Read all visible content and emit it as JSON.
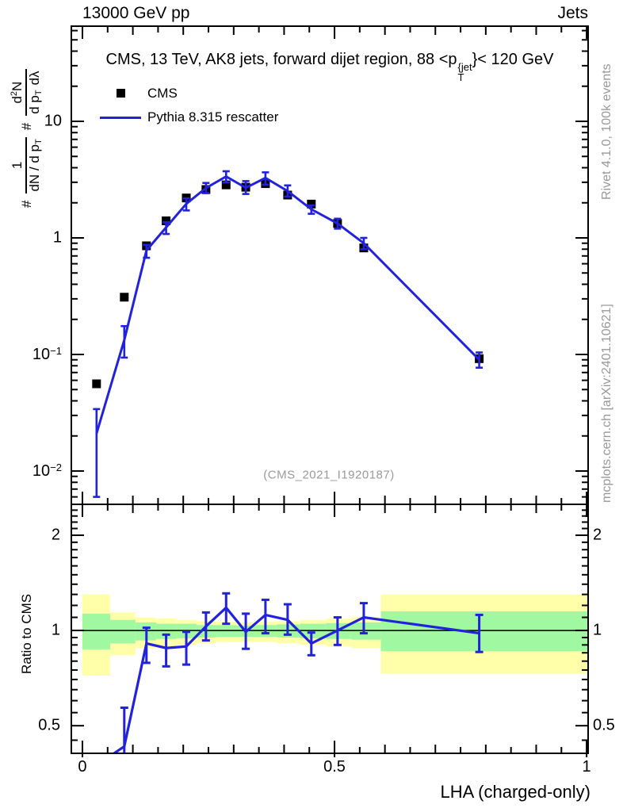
{
  "header": {
    "left": "13000 GeV pp",
    "right": "Jets"
  },
  "title": {
    "pre": "CMS, 13 TeV, AK8 jets, forward dijet region, 88 <p",
    "sup": "{jet",
    "sub": "T",
    "post": "}< 120 GeV"
  },
  "legend": {
    "items": [
      {
        "label": "CMS",
        "marker": "black-square"
      },
      {
        "label": "Pythia 8.315 rescatter",
        "marker": "blue-line"
      }
    ]
  },
  "watermark": "(CMS_2021_I1920187)",
  "side_notes": {
    "top": "Rivet 4.1.0,  100k events",
    "bottom": "mcplots.cern.ch [arXiv:2401.10621]"
  },
  "formula": {
    "hash1": "#",
    "f1_num": "1",
    "f1_den": "dN / d p",
    "f1_den_sub": "T",
    "hash2": "#",
    "f2_num_base": "d",
    "f2_num_sup": "2",
    "f2_num_tail": "N",
    "f2_den_a": "d p",
    "f2_den_sub": "T",
    "f2_den_b": "dλ"
  },
  "axis_titles": {
    "x": "LHA (charged-only)",
    "ratio_y": "Ratio to CMS"
  },
  "colors": {
    "blue": "#2222dd",
    "black": "#000000",
    "band_yellow": "#ffffaa",
    "band_green": "#a0f8a0",
    "note_gray": "#999999",
    "watermark_gray": "#9a9a9a"
  },
  "chart_data": {
    "type": "line",
    "title": "CMS, 13 TeV, AK8 jets, forward dijet region, 88 < pT^{jet} < 120 GeV",
    "xlabel": "LHA (charged-only)",
    "ylabel": "# 1/(dN/dpT) # d2N/(dpT dlambda)",
    "ratio_ylabel": "Ratio to CMS",
    "y_scale": "log",
    "ratio_scale": "log",
    "x_range": [
      -0.022,
      1.003
    ],
    "main_y_range": [
      0.00518,
      65.5
    ],
    "ratio_y_range": [
      0.409,
      2.504
    ],
    "x": [
      0.028,
      0.083,
      0.127,
      0.166,
      0.206,
      0.245,
      0.285,
      0.324,
      0.363,
      0.407,
      0.454,
      0.506,
      0.558,
      0.787
    ],
    "series": [
      {
        "name": "CMS",
        "style": "scatter-square",
        "color": "#000000",
        "values": [
          0.056,
          0.31,
          0.855,
          1.4,
          2.2,
          2.6,
          2.85,
          2.72,
          2.92,
          2.33,
          1.95,
          1.33,
          0.82,
          0.092
        ]
      },
      {
        "name": "Pythia 8.315 rescatter",
        "style": "line-errorbars",
        "color": "#2222dd",
        "values": [
          0.021,
          0.133,
          0.78,
          1.23,
          1.96,
          2.68,
          3.36,
          2.69,
          3.27,
          2.52,
          1.76,
          1.33,
          0.9,
          0.09
        ],
        "err_lo": [
          0.006,
          0.094,
          0.675,
          1.08,
          1.72,
          2.42,
          2.99,
          2.38,
          2.86,
          2.26,
          1.61,
          1.2,
          0.8,
          0.077
        ],
        "err_hi": [
          0.034,
          0.175,
          0.87,
          1.36,
          2.18,
          2.96,
          3.73,
          3.07,
          3.65,
          2.82,
          1.9,
          1.46,
          1.0,
          0.104
        ]
      }
    ],
    "ratio": {
      "name": "Pythia/CMS",
      "reference": 1,
      "values": [
        0.375,
        0.43,
        0.91,
        0.88,
        0.89,
        1.03,
        1.18,
        0.99,
        1.12,
        1.08,
        0.91,
        1.0,
        1.1,
        0.98
      ],
      "err_lo": [
        0.3,
        0.36,
        0.79,
        0.77,
        0.78,
        0.93,
        1.05,
        0.875,
        0.98,
        0.97,
        0.835,
        0.9,
        0.98,
        0.855
      ],
      "err_hi": [
        0.45,
        0.57,
        1.02,
        0.97,
        0.99,
        1.14,
        1.31,
        1.13,
        1.25,
        1.21,
        0.985,
        1.1,
        1.22,
        1.12
      ]
    },
    "bands": [
      {
        "x0": 0.0,
        "x1": 0.055,
        "yellow": [
          0.72,
          1.3
        ],
        "green": [
          0.87,
          1.13
        ]
      },
      {
        "x0": 0.055,
        "x1": 0.105,
        "yellow": [
          0.835,
          1.14
        ],
        "green": [
          0.91,
          1.08
        ]
      },
      {
        "x0": 0.105,
        "x1": 0.146,
        "yellow": [
          0.88,
          1.1
        ],
        "green": [
          0.93,
          1.06
        ]
      },
      {
        "x0": 0.146,
        "x1": 0.186,
        "yellow": [
          0.89,
          1.09
        ],
        "green": [
          0.94,
          1.05
        ]
      },
      {
        "x0": 0.186,
        "x1": 0.226,
        "yellow": [
          0.9,
          1.08
        ],
        "green": [
          0.945,
          1.05
        ]
      },
      {
        "x0": 0.226,
        "x1": 0.265,
        "yellow": [
          0.91,
          1.07
        ],
        "green": [
          0.95,
          1.04
        ]
      },
      {
        "x0": 0.265,
        "x1": 0.305,
        "yellow": [
          0.92,
          1.065
        ],
        "green": [
          0.955,
          1.04
        ]
      },
      {
        "x0": 0.305,
        "x1": 0.344,
        "yellow": [
          0.92,
          1.06
        ],
        "green": [
          0.955,
          1.035
        ]
      },
      {
        "x0": 0.344,
        "x1": 0.385,
        "yellow": [
          0.92,
          1.065
        ],
        "green": [
          0.955,
          1.04
        ]
      },
      {
        "x0": 0.385,
        "x1": 0.432,
        "yellow": [
          0.91,
          1.07
        ],
        "green": [
          0.95,
          1.045
        ]
      },
      {
        "x0": 0.432,
        "x1": 0.483,
        "yellow": [
          0.9,
          1.08
        ],
        "green": [
          0.945,
          1.05
        ]
      },
      {
        "x0": 0.483,
        "x1": 0.534,
        "yellow": [
          0.89,
          1.09
        ],
        "green": [
          0.94,
          1.055
        ]
      },
      {
        "x0": 0.534,
        "x1": 0.592,
        "yellow": [
          0.88,
          1.1
        ],
        "green": [
          0.935,
          1.06
        ]
      },
      {
        "x0": 0.592,
        "x1": 1.003,
        "yellow": [
          0.73,
          1.3
        ],
        "green": [
          0.86,
          1.15
        ]
      }
    ],
    "axes": {
      "x_major": [
        0,
        0.5,
        1
      ],
      "x_minor_step": 0.05,
      "main_y_major": [
        10,
        1,
        0.1,
        0.01
      ],
      "ratio_y_major": [
        2,
        1,
        0.5
      ],
      "ratio_y_minor": [
        0.45,
        0.55,
        0.6,
        0.65,
        0.7,
        0.75,
        0.8,
        0.85,
        0.9,
        0.95,
        1.1,
        1.2,
        1.3,
        1.4,
        1.5,
        1.6,
        1.7,
        1.8,
        1.9,
        2.1,
        2.2,
        2.3,
        2.4,
        2.5
      ],
      "main_y_labels": [
        {
          "v": 10,
          "base": "10",
          "exp": ""
        },
        {
          "v": 1,
          "base": "1",
          "exp": ""
        },
        {
          "v": 0.1,
          "base": "10",
          "exp": "−1"
        },
        {
          "v": 0.01,
          "base": "10",
          "exp": "−2"
        }
      ],
      "ratio_y_labels": [
        {
          "v": 2,
          "label": "2"
        },
        {
          "v": 1,
          "label": "1"
        },
        {
          "v": 0.5,
          "label": "0.5"
        }
      ],
      "x_labels": [
        {
          "v": 0,
          "label": "0"
        },
        {
          "v": 0.5,
          "label": "0.5"
        },
        {
          "v": 1,
          "label": "1"
        }
      ]
    }
  }
}
